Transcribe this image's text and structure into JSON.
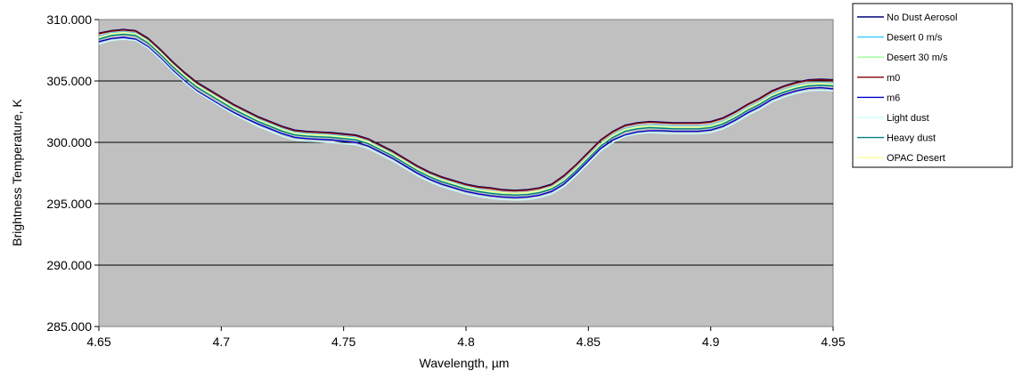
{
  "chart_data": {
    "type": "line",
    "title": "",
    "xlabel": "Wavelength, µm",
    "ylabel": "Brightness Temperature, K",
    "xlim": [
      4.65,
      4.95
    ],
    "ylim": [
      285,
      310
    ],
    "x_ticks": [
      "4.65",
      "4.7",
      "4.75",
      "4.8",
      "4.85",
      "4.9",
      "4.95"
    ],
    "y_ticks": [
      "285.000",
      "290.000",
      "295.000",
      "300.000",
      "305.000",
      "310.000"
    ],
    "grid": "horizontal",
    "plot_background": "#C0C0C0",
    "legend_position": "right",
    "x": [
      4.65,
      4.655,
      4.66,
      4.665,
      4.67,
      4.675,
      4.68,
      4.685,
      4.69,
      4.695,
      4.7,
      4.705,
      4.71,
      4.715,
      4.72,
      4.725,
      4.73,
      4.735,
      4.74,
      4.745,
      4.75,
      4.755,
      4.76,
      4.765,
      4.77,
      4.775,
      4.78,
      4.785,
      4.79,
      4.795,
      4.8,
      4.805,
      4.81,
      4.815,
      4.82,
      4.825,
      4.83,
      4.835,
      4.84,
      4.845,
      4.85,
      4.855,
      4.86,
      4.865,
      4.87,
      4.875,
      4.88,
      4.885,
      4.89,
      4.895,
      4.9,
      4.905,
      4.91,
      4.915,
      4.92,
      4.925,
      4.93,
      4.935,
      4.94,
      4.945,
      4.95
    ],
    "series": [
      {
        "name": "No Dust Aerosol",
        "color": "#000080",
        "values": [
          308.9,
          309.1,
          309.2,
          309.1,
          308.5,
          307.6,
          306.6,
          305.7,
          304.9,
          304.3,
          303.7,
          303.1,
          302.6,
          302.1,
          301.7,
          301.3,
          301.0,
          300.9,
          300.85,
          300.8,
          300.7,
          300.6,
          300.3,
          299.8,
          299.3,
          298.7,
          298.1,
          297.6,
          297.2,
          296.9,
          296.6,
          296.4,
          296.3,
          296.15,
          296.1,
          296.15,
          296.3,
          296.6,
          297.3,
          298.2,
          299.2,
          300.2,
          300.9,
          301.4,
          301.6,
          301.7,
          301.65,
          301.6,
          301.6,
          301.6,
          301.7,
          302.0,
          302.5,
          303.1,
          303.6,
          304.2,
          304.6,
          304.9,
          305.1,
          305.15,
          305.1
        ]
      },
      {
        "name": "Desert 0 m/s",
        "color": "#33CCFF",
        "values": [
          308.6,
          308.9,
          309.0,
          308.9,
          308.3,
          307.4,
          306.4,
          305.5,
          304.7,
          304.1,
          303.5,
          302.9,
          302.4,
          301.9,
          301.5,
          301.1,
          300.8,
          300.7,
          300.65,
          300.6,
          300.5,
          300.4,
          300.1,
          299.6,
          299.1,
          298.5,
          297.9,
          297.4,
          297.0,
          296.7,
          296.4,
          296.2,
          296.0,
          295.9,
          295.85,
          295.9,
          296.05,
          296.4,
          297.0,
          297.9,
          298.9,
          299.9,
          300.6,
          301.1,
          301.3,
          301.4,
          301.35,
          301.3,
          301.3,
          301.3,
          301.4,
          301.7,
          302.2,
          302.8,
          303.3,
          303.9,
          304.3,
          304.6,
          304.8,
          304.85,
          304.8
        ]
      },
      {
        "name": "Desert 30 m/s",
        "color": "#99FF99",
        "values": [
          308.5,
          308.8,
          308.9,
          308.8,
          308.2,
          307.3,
          306.3,
          305.4,
          304.6,
          304.0,
          303.4,
          302.8,
          302.3,
          301.8,
          301.4,
          301.0,
          300.7,
          300.6,
          300.55,
          300.5,
          300.4,
          300.3,
          300.0,
          299.5,
          299.0,
          298.4,
          297.8,
          297.3,
          296.9,
          296.6,
          296.3,
          296.1,
          295.95,
          295.85,
          295.8,
          295.85,
          296.0,
          296.3,
          296.9,
          297.8,
          298.8,
          299.8,
          300.5,
          301.0,
          301.2,
          301.3,
          301.25,
          301.2,
          301.2,
          301.2,
          301.3,
          301.6,
          302.1,
          302.7,
          303.2,
          303.8,
          304.2,
          304.5,
          304.7,
          304.75,
          304.7
        ]
      },
      {
        "name": "m0",
        "color": "#800000",
        "values": [
          308.85,
          309.05,
          309.15,
          309.05,
          308.45,
          307.55,
          306.55,
          305.65,
          304.85,
          304.25,
          303.65,
          303.05,
          302.55,
          302.05,
          301.65,
          301.25,
          300.95,
          300.85,
          300.8,
          300.75,
          300.65,
          300.55,
          300.25,
          299.75,
          299.25,
          298.65,
          298.05,
          297.55,
          297.15,
          296.85,
          296.55,
          296.35,
          296.25,
          296.1,
          296.05,
          296.1,
          296.25,
          296.55,
          297.25,
          298.15,
          299.15,
          300.15,
          300.85,
          301.35,
          301.55,
          301.65,
          301.6,
          301.55,
          301.55,
          301.55,
          301.65,
          301.95,
          302.45,
          303.05,
          303.55,
          304.15,
          304.55,
          304.85,
          305.05,
          305.1,
          305.05
        ]
      },
      {
        "name": "m6",
        "color": "#0000CC",
        "values": [
          308.2,
          308.45,
          308.55,
          308.4,
          307.8,
          306.9,
          305.9,
          305.0,
          304.2,
          303.6,
          303.0,
          302.45,
          301.95,
          301.5,
          301.1,
          300.7,
          300.4,
          300.3,
          300.25,
          300.2,
          300.1,
          300.0,
          299.7,
          299.2,
          298.7,
          298.1,
          297.5,
          297.0,
          296.6,
          296.3,
          296.0,
          295.8,
          295.65,
          295.55,
          295.5,
          295.55,
          295.7,
          296.0,
          296.6,
          297.5,
          298.5,
          299.5,
          300.2,
          300.6,
          300.85,
          300.95,
          300.95,
          300.9,
          300.9,
          300.9,
          301.0,
          301.3,
          301.8,
          302.4,
          302.9,
          303.5,
          303.9,
          304.2,
          304.4,
          304.45,
          304.35
        ]
      },
      {
        "name": "Light dust",
        "color": "#CCFFFF",
        "values": [
          308.0,
          308.3,
          308.4,
          308.3,
          307.7,
          306.8,
          305.8,
          304.9,
          304.1,
          303.5,
          302.9,
          302.3,
          301.8,
          301.3,
          300.9,
          300.5,
          300.2,
          300.1,
          300.05,
          300.0,
          299.9,
          299.8,
          299.5,
          299.0,
          298.5,
          297.9,
          297.3,
          296.8,
          296.4,
          296.1,
          295.8,
          295.6,
          295.45,
          295.35,
          295.3,
          295.35,
          295.5,
          295.8,
          296.4,
          297.3,
          298.3,
          299.3,
          300.0,
          300.5,
          300.7,
          300.8,
          300.75,
          300.7,
          300.7,
          300.7,
          300.8,
          301.1,
          301.6,
          302.2,
          302.7,
          303.3,
          303.7,
          304.0,
          304.2,
          304.25,
          304.2
        ]
      },
      {
        "name": "Heavy dust",
        "color": "#008080",
        "values": [
          308.4,
          308.7,
          308.8,
          308.7,
          308.1,
          307.2,
          306.2,
          305.3,
          304.5,
          303.9,
          303.3,
          302.7,
          302.2,
          301.7,
          301.3,
          300.9,
          300.6,
          300.5,
          300.45,
          300.4,
          300.3,
          300.2,
          299.9,
          299.4,
          298.9,
          298.3,
          297.7,
          297.2,
          296.8,
          296.5,
          296.2,
          296.0,
          295.85,
          295.75,
          295.7,
          295.75,
          295.9,
          296.2,
          296.8,
          297.7,
          298.7,
          299.7,
          300.4,
          300.9,
          301.1,
          301.2,
          301.15,
          301.1,
          301.1,
          301.1,
          301.2,
          301.5,
          302.0,
          302.6,
          303.1,
          303.7,
          304.1,
          304.4,
          304.6,
          304.65,
          304.6
        ]
      },
      {
        "name": "OPAC Desert",
        "color": "#FFFF99",
        "values": [
          308.55,
          308.85,
          308.95,
          308.85,
          308.25,
          307.35,
          306.35,
          305.45,
          304.65,
          304.05,
          303.45,
          302.85,
          302.35,
          301.85,
          301.45,
          301.05,
          300.75,
          300.65,
          300.6,
          300.55,
          300.45,
          300.35,
          300.05,
          299.55,
          299.05,
          298.45,
          297.85,
          297.35,
          296.95,
          296.65,
          296.35,
          296.15,
          296.0,
          295.9,
          295.85,
          295.9,
          296.05,
          296.35,
          296.95,
          297.85,
          298.85,
          299.85,
          300.55,
          301.05,
          301.25,
          301.35,
          301.3,
          301.25,
          301.25,
          301.25,
          301.35,
          301.65,
          302.15,
          302.75,
          303.25,
          303.85,
          304.25,
          304.55,
          304.75,
          304.8,
          304.75
        ]
      }
    ]
  }
}
